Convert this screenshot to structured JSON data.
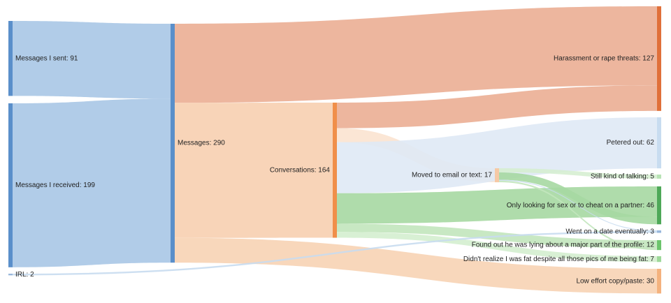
{
  "chart_data": {
    "type": "sankey",
    "nodes": [
      {
        "id": "sent",
        "label": "Messages I sent: 91",
        "value": 91,
        "color": "#5a8fca"
      },
      {
        "id": "received",
        "label": "Messages I received: 199",
        "value": 199,
        "color": "#5a8fca"
      },
      {
        "id": "irl",
        "label": "IRL: 2",
        "value": 2,
        "color": "#9ab8dc"
      },
      {
        "id": "messages",
        "label": "Messages: 290",
        "value": 290,
        "color": "#5a8fca"
      },
      {
        "id": "conversations",
        "label": "Conversations: 164",
        "value": 164,
        "color": "#f08f4a"
      },
      {
        "id": "harassment",
        "label": "Harassment or rape threats: 127",
        "value": 127,
        "color": "#e0703a"
      },
      {
        "id": "moved",
        "label": "Moved to email or text: 17",
        "value": 17,
        "color": "#f6c9a5"
      },
      {
        "id": "petered",
        "label": "Petered out: 62",
        "value": 62,
        "color": "#c8dcf0"
      },
      {
        "id": "still",
        "label": "Still kind of talking: 5",
        "value": 5,
        "color": "#b8e3b5"
      },
      {
        "id": "sex",
        "label": "Only looking for sex or to cheat on a partner: 46",
        "value": 46,
        "color": "#4ea858"
      },
      {
        "id": "date",
        "label": "Went on a date eventually: 3",
        "value": 3,
        "color": "#9ab8dc"
      },
      {
        "id": "lying",
        "label": "Found out he was lying about a major part of the profile: 12",
        "value": 12,
        "color": "#6cc46c"
      },
      {
        "id": "fat",
        "label": "Didn't realize I was fat despite all those pics of me being fat: 7",
        "value": 7,
        "color": "#9ed89a"
      },
      {
        "id": "copy",
        "label": "Low effort copy/paste: 30",
        "value": 30,
        "color": "#f4b27e"
      }
    ],
    "links": [
      {
        "source": "sent",
        "target": "messages",
        "value": 91,
        "color": "#a9c6e6"
      },
      {
        "source": "received",
        "target": "messages",
        "value": 199,
        "color": "#a9c6e6"
      },
      {
        "source": "messages",
        "target": "harassment",
        "value": 96,
        "color": "#ebae94"
      },
      {
        "source": "messages",
        "target": "conversations",
        "value": 164,
        "color": "#f7cfb0"
      },
      {
        "source": "messages",
        "target": "copy",
        "value": 30,
        "color": "#f7d3b4"
      },
      {
        "source": "conversations",
        "target": "harassment",
        "value": 31,
        "color": "#ebae94"
      },
      {
        "source": "conversations",
        "target": "moved",
        "value": 17,
        "color": "#fbe3d0"
      },
      {
        "source": "conversations",
        "target": "petered",
        "value": 62,
        "color": "#dfe9f5"
      },
      {
        "source": "conversations",
        "target": "sex",
        "value": 37,
        "color": "#a6d8a2"
      },
      {
        "source": "conversations",
        "target": "lying",
        "value": 10,
        "color": "#c2e6bd"
      },
      {
        "source": "conversations",
        "target": "fat",
        "value": 7,
        "color": "#d4eecf"
      },
      {
        "source": "moved",
        "target": "still",
        "value": 5,
        "color": "#d6eed2"
      },
      {
        "source": "moved",
        "target": "sex",
        "value": 9,
        "color": "#a6d8a2"
      },
      {
        "source": "moved",
        "target": "date",
        "value": 1,
        "color": "#c8dcf0"
      },
      {
        "source": "moved",
        "target": "lying",
        "value": 2,
        "color": "#c2e6bd"
      },
      {
        "source": "irl",
        "target": "date",
        "value": 2,
        "color": "#c8dcf0"
      }
    ]
  }
}
